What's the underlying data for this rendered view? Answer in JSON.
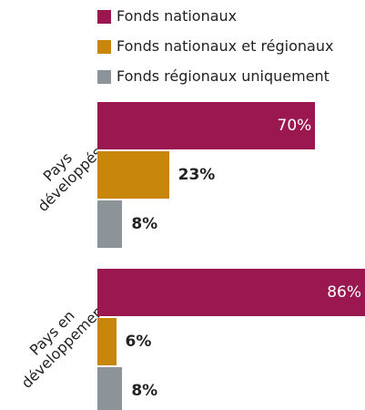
{
  "chart_data": {
    "type": "bar",
    "orientation": "horizontal",
    "categories": [
      "Pays\ndéveloppés",
      "Pays en\ndéveloppement"
    ],
    "series": [
      {
        "name": "Fonds nationaux",
        "color": "#9b1750",
        "values": [
          70,
          86
        ],
        "value_labels": [
          "70%",
          "86%"
        ]
      },
      {
        "name": "Fonds nationaux et régionaux",
        "color": "#c8860a",
        "values": [
          23,
          6
        ],
        "value_labels": [
          "23%",
          "6%"
        ]
      },
      {
        "name": "Fonds régionaux uniquement",
        "color": "#8c9399",
        "values": [
          8,
          8
        ],
        "value_labels": [
          "8%",
          "8%"
        ]
      }
    ],
    "legend": "top"
  }
}
